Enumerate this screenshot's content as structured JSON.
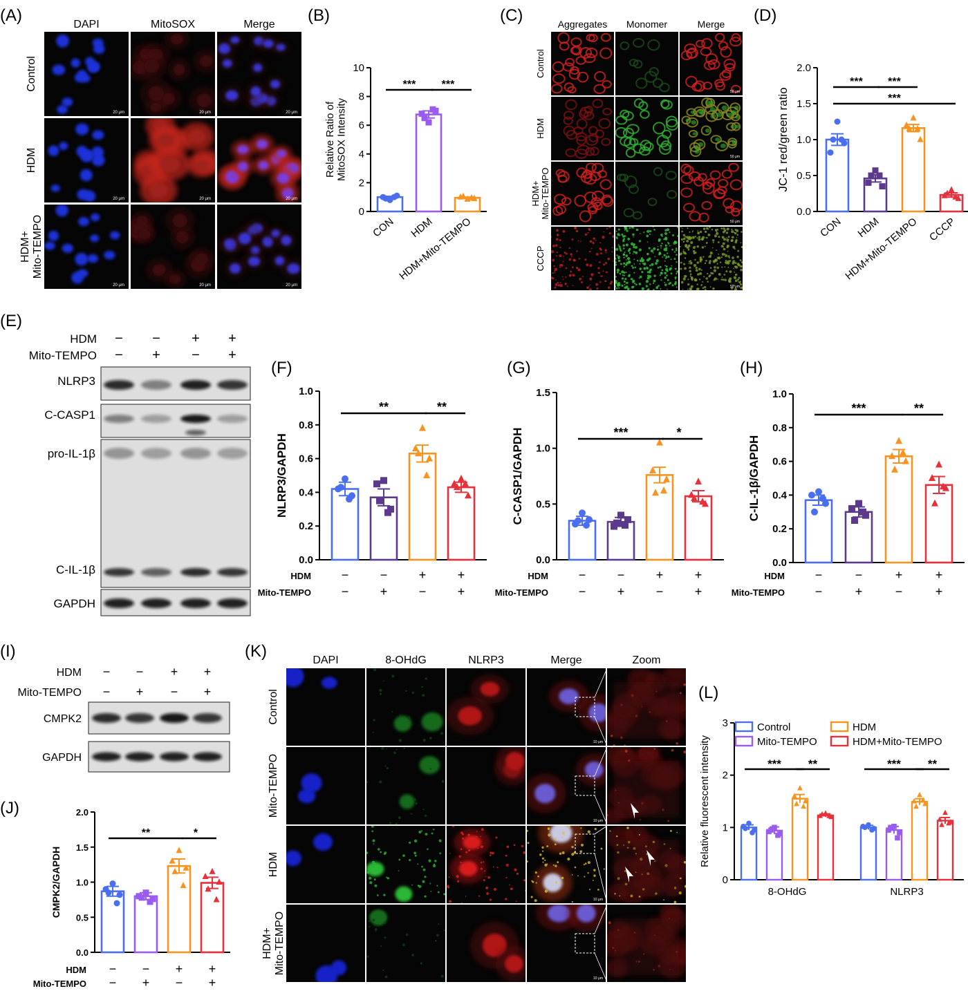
{
  "colors": {
    "con": "#4a6ef0",
    "mito": "#9a5cf0",
    "hdm": "#f7931e",
    "hdm_mito": "#e8303a",
    "dark_purple": "#5b3a8e",
    "dapi": "#1f33d8",
    "red": "#d8201e",
    "green": "#2fc83a"
  },
  "panels": {
    "A": {
      "label": "(A)",
      "cols": [
        "DAPI",
        "MitoSOX",
        "Merge"
      ],
      "rows": [
        "Control",
        "HDM",
        "HDM+\nMito-TEMPO"
      ],
      "scale": "20 μm"
    },
    "C": {
      "label": "(C)",
      "cols": [
        "Aggregates",
        "Monomer",
        "Merge"
      ],
      "rows": [
        "Control",
        "HDM",
        "HDM+\nMito-TEMPO",
        "CCCP"
      ],
      "scale": "50 μm"
    },
    "E": {
      "label": "(E)",
      "hdm": [
        "−",
        "−",
        "+",
        "+"
      ],
      "mito": [
        "−",
        "+",
        "−",
        "+"
      ],
      "bands": [
        "NLRP3",
        "C-CASP1",
        "pro-IL-1β",
        "C-IL-1β",
        "GAPDH"
      ],
      "row_labels": [
        "HDM",
        "Mito-TEMPO"
      ]
    },
    "I": {
      "label": "(I)",
      "hdm": [
        "−",
        "−",
        "+",
        "+"
      ],
      "mito": [
        "−",
        "+",
        "−",
        "+"
      ],
      "bands": [
        "CMPK2",
        "GAPDH"
      ],
      "row_labels": [
        "HDM",
        "Mito-TEMPO"
      ]
    },
    "K": {
      "label": "(K)",
      "cols": [
        "DAPI",
        "8-OHdG",
        "NLRP3",
        "Merge",
        "Zoom"
      ],
      "rows": [
        "Control",
        "Mito-TEMPO",
        "HDM",
        "HDM+\nMito-TEMPO"
      ],
      "scale": "10 μm"
    }
  },
  "chart_data": [
    {
      "panel": "(B)",
      "type": "bar",
      "categories": [
        "CON",
        "HDM",
        "HDM+Mito-TEMPO"
      ],
      "values": [
        1.0,
        6.75,
        0.95
      ],
      "errors": [
        0.05,
        0.25,
        0.05
      ],
      "points": [
        [
          0.8,
          1.0,
          1.1,
          0.9,
          1.0
        ],
        [
          6.2,
          6.8,
          7.0,
          6.5,
          7.1
        ],
        [
          0.85,
          1.0,
          0.9,
          1.05,
          0.95
        ]
      ],
      "ylabel": "Relative Ratio of\nMitoSOX Intensity",
      "ylim": [
        0,
        10
      ],
      "yticks": [
        0,
        2,
        4,
        6,
        8,
        10
      ],
      "sig": [
        {
          "a": 0,
          "b": 1,
          "text": "***"
        },
        {
          "a": 1,
          "b": 2,
          "text": "***"
        }
      ],
      "colors": [
        "con",
        "mito",
        "hdm"
      ],
      "markers": [
        "circle",
        "square",
        "triangle"
      ]
    },
    {
      "panel": "(D)",
      "type": "bar",
      "categories": [
        "CON",
        "HDM",
        "HDM+Mito-TEMPO",
        "CCCP"
      ],
      "values": [
        1.0,
        0.46,
        1.16,
        0.23
      ],
      "errors": [
        0.08,
        0.05,
        0.05,
        0.03
      ],
      "points": [
        [
          1.25,
          0.82,
          0.95,
          1.0,
          1.0
        ],
        [
          0.57,
          0.4,
          0.35,
          0.5,
          0.5
        ],
        [
          1.3,
          1.2,
          1.0,
          1.15,
          1.15
        ],
        [
          0.3,
          0.22,
          0.18,
          0.25,
          0.2
        ]
      ],
      "ylabel": "JC-1 red/green ratio",
      "ylim": [
        0,
        2
      ],
      "yticks": [
        0.0,
        0.5,
        1.0,
        1.5,
        2.0
      ],
      "sig": [
        {
          "a": 0,
          "b": 1,
          "text": "***"
        },
        {
          "a": 1,
          "b": 2,
          "text": "***"
        },
        {
          "a": 0,
          "b": 3,
          "text": "***"
        }
      ],
      "colors": [
        "con",
        "dark_purple",
        "hdm",
        "hdm_mito"
      ],
      "markers": [
        "circle",
        "square",
        "triangle",
        "triangle"
      ]
    },
    {
      "panel": "(F)",
      "type": "bar",
      "categories": [
        "",
        "",
        "",
        ""
      ],
      "values": [
        0.42,
        0.37,
        0.63,
        0.43
      ],
      "errors": [
        0.04,
        0.05,
        0.05,
        0.03
      ],
      "points": [
        [
          0.48,
          0.42,
          0.38,
          0.43,
          0.36
        ],
        [
          0.47,
          0.45,
          0.3,
          0.35,
          0.28
        ],
        [
          0.78,
          0.66,
          0.6,
          0.63,
          0.5
        ],
        [
          0.48,
          0.45,
          0.38,
          0.43,
          0.45
        ]
      ],
      "ylabel": "NLRP3/GAPDH",
      "ylim": [
        0,
        1
      ],
      "yticks": [
        0.0,
        0.2,
        0.4,
        0.6,
        0.8,
        1.0
      ],
      "sig": [
        {
          "a": 0,
          "b": 2,
          "text": "**"
        },
        {
          "a": 2,
          "b": 3,
          "text": "**"
        }
      ],
      "colors": [
        "con",
        "dark_purple",
        "hdm",
        "hdm_mito"
      ],
      "markers": [
        "circle",
        "square",
        "triangle",
        "triangle"
      ],
      "hdm": [
        "−",
        "−",
        "+",
        "+"
      ],
      "mito": [
        "−",
        "+",
        "−",
        "+"
      ]
    },
    {
      "panel": "(G)",
      "type": "bar",
      "categories": [
        "",
        "",
        "",
        ""
      ],
      "values": [
        0.35,
        0.34,
        0.76,
        0.57
      ],
      "errors": [
        0.04,
        0.04,
        0.07,
        0.05
      ],
      "points": [
        [
          0.42,
          0.32,
          0.36,
          0.35,
          0.31
        ],
        [
          0.4,
          0.3,
          0.36,
          0.33,
          0.31
        ],
        [
          1.05,
          0.8,
          0.72,
          0.6,
          0.62
        ],
        [
          0.7,
          0.58,
          0.5,
          0.55,
          0.52
        ]
      ],
      "ylabel": "C-CASP1/GAPDH",
      "ylim": [
        0,
        1.5
      ],
      "yticks": [
        0.0,
        0.5,
        1.0,
        1.5
      ],
      "sig": [
        {
          "a": 0,
          "b": 2,
          "text": "***"
        },
        {
          "a": 2,
          "b": 3,
          "text": "*"
        }
      ],
      "colors": [
        "con",
        "dark_purple",
        "hdm",
        "hdm_mito"
      ],
      "markers": [
        "circle",
        "square",
        "triangle",
        "triangle"
      ],
      "hdm": [
        "−",
        "−",
        "+",
        "+"
      ],
      "mito": [
        "−",
        "+",
        "−",
        "+"
      ]
    },
    {
      "panel": "(H)",
      "type": "bar",
      "categories": [
        "",
        "",
        "",
        ""
      ],
      "values": [
        0.37,
        0.3,
        0.63,
        0.46
      ],
      "errors": [
        0.03,
        0.03,
        0.04,
        0.05
      ],
      "points": [
        [
          0.42,
          0.4,
          0.35,
          0.3,
          0.38
        ],
        [
          0.35,
          0.32,
          0.28,
          0.25,
          0.3
        ],
        [
          0.72,
          0.63,
          0.6,
          0.55,
          0.65
        ],
        [
          0.58,
          0.5,
          0.44,
          0.35,
          0.45
        ]
      ],
      "ylabel": "C-IL-1β/GAPDH",
      "ylim": [
        0,
        1
      ],
      "yticks": [
        0.0,
        0.2,
        0.4,
        0.6,
        0.8,
        1.0
      ],
      "sig": [
        {
          "a": 0,
          "b": 2,
          "text": "***"
        },
        {
          "a": 2,
          "b": 3,
          "text": "**"
        }
      ],
      "colors": [
        "con",
        "dark_purple",
        "hdm",
        "hdm_mito"
      ],
      "markers": [
        "circle",
        "square",
        "triangle",
        "triangle"
      ],
      "hdm": [
        "−",
        "−",
        "+",
        "+"
      ],
      "mito": [
        "−",
        "+",
        "−",
        "+"
      ]
    },
    {
      "panel": "(J)",
      "type": "bar",
      "categories": [
        "",
        "",
        "",
        ""
      ],
      "values": [
        0.87,
        0.8,
        1.23,
        0.99
      ],
      "errors": [
        0.07,
        0.05,
        0.1,
        0.08
      ],
      "points": [
        [
          0.98,
          0.9,
          0.82,
          0.85,
          0.7
        ],
        [
          0.85,
          0.8,
          0.76,
          0.78,
          0.72
        ],
        [
          1.45,
          1.3,
          1.2,
          1.15,
          0.95
        ],
        [
          1.15,
          1.08,
          1.0,
          0.9,
          0.75
        ]
      ],
      "ylabel": "CMPK2/GAPDH",
      "ylim": [
        0,
        2
      ],
      "yticks": [
        0.0,
        0.5,
        1.0,
        1.5,
        2.0
      ],
      "sig": [
        {
          "a": 0,
          "b": 2,
          "text": "**"
        },
        {
          "a": 2,
          "b": 3,
          "text": "*"
        }
      ],
      "colors": [
        "con",
        "mito",
        "hdm",
        "hdm_mito"
      ],
      "markers": [
        "circle",
        "square",
        "triangle",
        "triangle"
      ],
      "hdm": [
        "−",
        "−",
        "+",
        "+"
      ],
      "mito": [
        "−",
        "+",
        "−",
        "+"
      ]
    },
    {
      "panel": "(L)",
      "type": "bar",
      "categories": [
        "8-OHdG",
        "NLRP3"
      ],
      "ylabel": "Relative fluorescent intensity",
      "ylim": [
        0,
        3
      ],
      "yticks": [
        0,
        1,
        2,
        3
      ],
      "series": [
        {
          "name": "Control",
          "values": [
            1.0,
            1.0
          ],
          "errors": [
            0.05,
            0.04
          ],
          "color": "con",
          "marker": "circle"
        },
        {
          "name": "Mito-TEMPO",
          "values": [
            0.94,
            0.95
          ],
          "errors": [
            0.07,
            0.07
          ],
          "color": "mito",
          "marker": "square"
        },
        {
          "name": "HDM",
          "values": [
            1.55,
            1.49
          ],
          "errors": [
            0.08,
            0.06
          ],
          "color": "hdm",
          "marker": "triangle"
        },
        {
          "name": "HDM+Mito-TEMPO",
          "values": [
            1.23,
            1.13
          ],
          "errors": [
            0.03,
            0.06
          ],
          "color": "hdm_mito",
          "marker": "triangle"
        }
      ],
      "points": [
        [
          [
            1.08,
            1.02,
            0.95,
            0.98,
            0.9
          ],
          [
            1.0,
            0.92,
            0.88,
            0.95,
            0.85
          ],
          [
            1.75,
            1.6,
            1.5,
            1.45,
            1.4
          ],
          [
            1.27,
            1.22,
            1.2,
            1.25,
            1.22
          ]
        ],
        [
          [
            1.05,
            1.02,
            0.98,
            1.0,
            0.95
          ],
          [
            1.02,
            0.95,
            0.9,
            1.0,
            0.8
          ],
          [
            1.62,
            1.5,
            1.45,
            1.4,
            1.52
          ],
          [
            1.28,
            1.15,
            1.1,
            1.05,
            1.08
          ]
        ]
      ],
      "sig": [
        {
          "group": 0,
          "a": 0,
          "b": 2,
          "text": "***"
        },
        {
          "group": 0,
          "a": 2,
          "b": 3,
          "text": "**"
        },
        {
          "group": 1,
          "a": 0,
          "b": 2,
          "text": "***"
        },
        {
          "group": 1,
          "a": 2,
          "b": 3,
          "text": "**"
        }
      ]
    }
  ]
}
